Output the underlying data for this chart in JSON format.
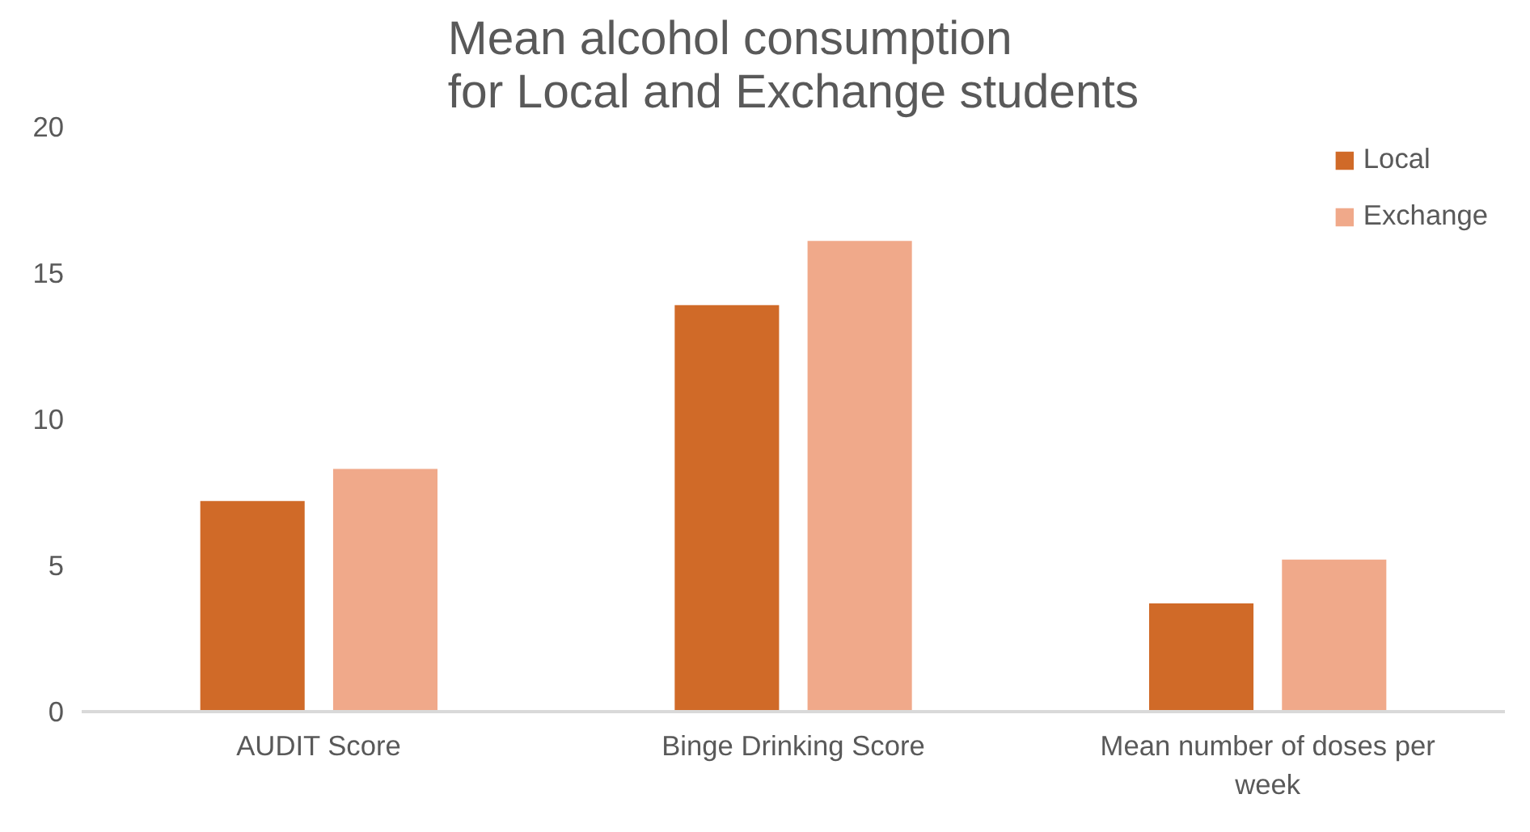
{
  "chart_data": {
    "type": "bar",
    "title": "Mean alcohol consumption\nfor Local and Exchange students",
    "categories": [
      "AUDIT Score",
      "Binge Drinking Score",
      "Mean number of doses per week"
    ],
    "series": [
      {
        "name": "Local",
        "color": "#d06a28",
        "values": [
          7.2,
          13.9,
          3.7
        ]
      },
      {
        "name": "Exchange",
        "color": "#f0a98a",
        "values": [
          8.3,
          16.1,
          5.2
        ]
      }
    ],
    "ylim": [
      0,
      20
    ],
    "yticks": [
      0,
      5,
      10,
      15,
      20
    ],
    "grid": false,
    "legend": "top right"
  }
}
